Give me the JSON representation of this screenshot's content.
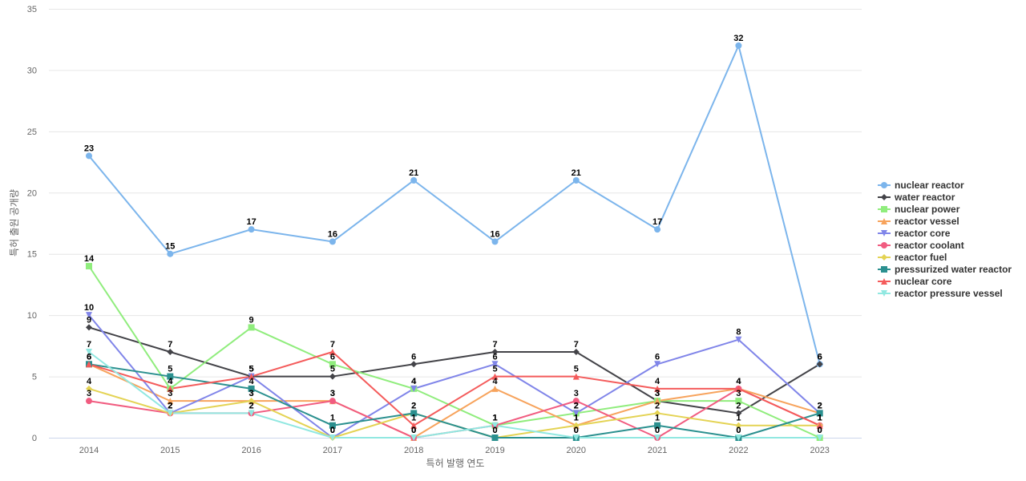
{
  "chart_data": {
    "type": "line",
    "title": "",
    "xlabel": "특허 발행 연도",
    "ylabel": "특허 출원 공개량",
    "ylim": [
      0,
      35
    ],
    "yticks": [
      0,
      5,
      10,
      15,
      20,
      25,
      30,
      35
    ],
    "categories": [
      "2014",
      "2015",
      "2016",
      "2017",
      "2018",
      "2019",
      "2020",
      "2021",
      "2022",
      "2023"
    ],
    "legend_position": "right",
    "series": [
      {
        "name": "nuclear reactor",
        "color": "#7cb5ec",
        "marker": "circle",
        "values": [
          23,
          15,
          17,
          16,
          21,
          16,
          21,
          17,
          32,
          6
        ]
      },
      {
        "name": "water reactor",
        "color": "#434348",
        "marker": "diamond",
        "values": [
          9,
          7,
          5,
          5,
          6,
          7,
          7,
          3,
          2,
          6
        ]
      },
      {
        "name": "nuclear power",
        "color": "#90ed7d",
        "marker": "square",
        "values": [
          14,
          4,
          9,
          6,
          4,
          1,
          2,
          3,
          3,
          0
        ]
      },
      {
        "name": "reactor vessel",
        "color": "#f7a35c",
        "marker": "triangle",
        "values": [
          6,
          3,
          3,
          3,
          0,
          4,
          1,
          3,
          4,
          2
        ]
      },
      {
        "name": "reactor core",
        "color": "#8085e9",
        "marker": "triangle-down",
        "values": [
          10,
          2,
          5,
          0,
          4,
          6,
          2,
          6,
          8,
          2
        ]
      },
      {
        "name": "reactor coolant",
        "color": "#f15c80",
        "marker": "circle",
        "values": [
          3,
          2,
          2,
          3,
          0,
          1,
          3,
          0,
          4,
          1
        ]
      },
      {
        "name": "reactor fuel",
        "color": "#e4d354",
        "marker": "diamond",
        "values": [
          4,
          2,
          3,
          0,
          2,
          0,
          1,
          2,
          1,
          1
        ]
      },
      {
        "name": "pressurized water reactor",
        "color": "#2b908f",
        "marker": "square",
        "values": [
          6,
          5,
          4,
          1,
          2,
          0,
          0,
          1,
          0,
          2
        ]
      },
      {
        "name": "nuclear core",
        "color": "#f45b5b",
        "marker": "triangle",
        "values": [
          6,
          4,
          5,
          7,
          1,
          5,
          5,
          4,
          4,
          1
        ]
      },
      {
        "name": "reactor pressure vessel",
        "color": "#91e8e1",
        "marker": "triangle-down",
        "values": [
          7,
          2,
          2,
          0,
          0,
          1,
          0,
          0,
          0,
          0
        ]
      }
    ]
  }
}
